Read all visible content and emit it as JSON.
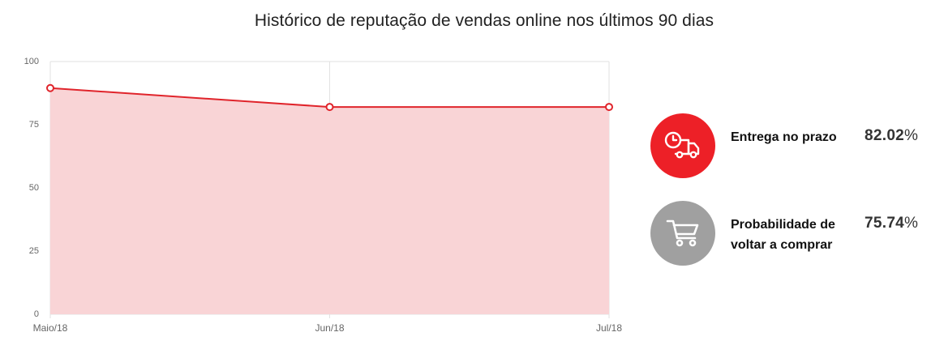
{
  "header": {
    "title": "Histórico de reputação de vendas online nos últimos 90 dias"
  },
  "colors": {
    "line": "#e0242b",
    "area": "#f9d4d6",
    "grid": "#e2e2e2",
    "accent_red": "#ed2027",
    "neutral_gray": "#a0a0a0"
  },
  "chart_data": {
    "type": "area",
    "categories": [
      "Maio/18",
      "Jun/18",
      "Jul/18"
    ],
    "series": [
      {
        "values": [
          89.5,
          82.02,
          82.02
        ]
      }
    ],
    "ylim": [
      0,
      100
    ],
    "yticks": [
      0,
      25,
      50,
      75,
      100
    ],
    "grid": true
  },
  "metrics": [
    {
      "icon": "delivery-truck-clock-icon",
      "label": "Entrega no prazo",
      "value": "82.02",
      "unit": "%"
    },
    {
      "icon": "shopping-cart-icon",
      "label": "Probabilidade de voltar a comprar",
      "value": "75.74",
      "unit": "%"
    }
  ]
}
